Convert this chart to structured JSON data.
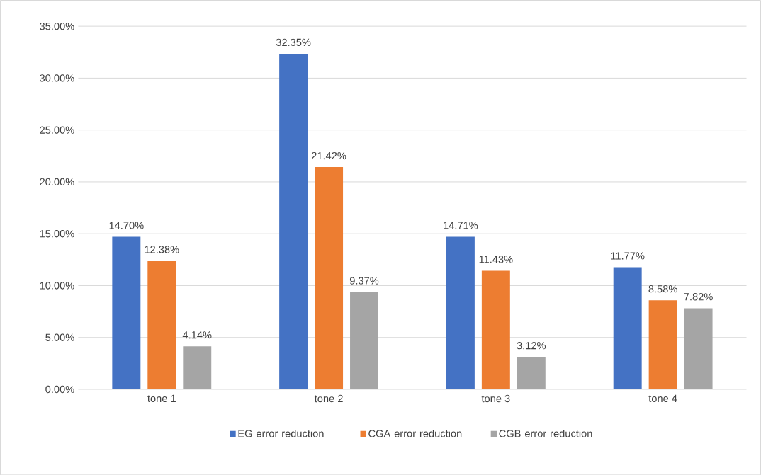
{
  "chart_data": {
    "type": "bar",
    "categories": [
      "tone 1",
      "tone 2",
      "tone 3",
      "tone 4"
    ],
    "series": [
      {
        "name": "EG error reduction",
        "color": "#4472c4",
        "values": [
          14.7,
          32.35,
          14.71,
          11.77
        ],
        "value_labels": [
          "14.70%",
          "32.35%",
          "14.71%",
          "11.77%"
        ]
      },
      {
        "name": "CGA error reduction",
        "color": "#ed7d31",
        "values": [
          12.38,
          21.42,
          11.43,
          8.58
        ],
        "value_labels": [
          "12.38%",
          "21.42%",
          "11.43%",
          "8.58%"
        ]
      },
      {
        "name": "CGB error reduction",
        "color": "#a5a5a5",
        "values": [
          4.14,
          9.37,
          3.12,
          7.82
        ],
        "value_labels": [
          "4.14%",
          "9.37%",
          "3.12%",
          "7.82%"
        ]
      }
    ],
    "ylim": [
      0,
      35
    ],
    "yticks": [
      {
        "value": 0,
        "label": "0.00%"
      },
      {
        "value": 5,
        "label": "5.00%"
      },
      {
        "value": 10,
        "label": "10.00%"
      },
      {
        "value": 15,
        "label": "15.00%"
      },
      {
        "value": 20,
        "label": "20.00%"
      },
      {
        "value": 25,
        "label": "25.00%"
      },
      {
        "value": 30,
        "label": "30.00%"
      },
      {
        "value": 35,
        "label": "35.00%"
      }
    ],
    "grid": "y",
    "legend": "bottom"
  }
}
